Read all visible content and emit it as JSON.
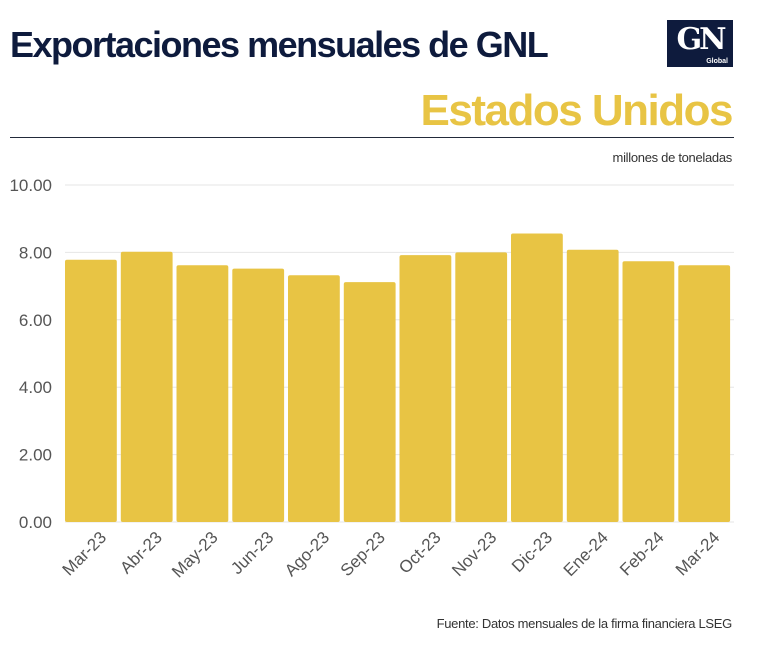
{
  "header": {
    "title": "Exportaciones mensuales de GNL",
    "subtitle": "Estados Unidos",
    "logo": {
      "mark": "GN",
      "sub": "Global"
    }
  },
  "units_label": "millones de toneladas",
  "source": "Fuente: Datos  mensuales de la firma financiera LSEG",
  "colors": {
    "bar": "#e8c444",
    "title": "#0e1b3d",
    "subtitle": "#e8c444",
    "grid": "#e6e6e6"
  },
  "chart_data": {
    "type": "bar",
    "categories": [
      "Mar-23",
      "Abr-23",
      "May-23",
      "Jun-23",
      "Ago-23",
      "Sep-23",
      "Oct-23",
      "Nov-23",
      "Dic-23",
      "Ene-24",
      "Feb-24",
      "Mar-24"
    ],
    "values": [
      7.78,
      8.02,
      7.62,
      7.52,
      7.32,
      7.12,
      7.92,
      8.0,
      8.56,
      8.08,
      7.74,
      7.62
    ],
    "yticks": [
      "0.00",
      "2.00",
      "4.00",
      "6.00",
      "8.00",
      "10.00"
    ],
    "ylim": [
      0,
      10
    ],
    "grid": true,
    "legend": "none"
  }
}
